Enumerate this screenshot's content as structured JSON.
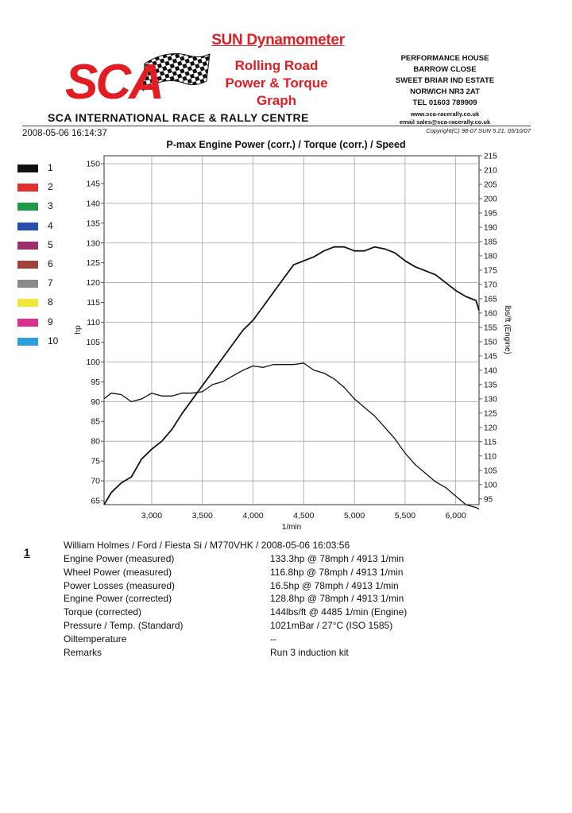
{
  "header": {
    "sun_title": "SUN Dynamometer",
    "brand_lines": [
      "Rolling Road",
      "Power & Torque",
      "Graph"
    ],
    "logo_text": "SCA",
    "centre_name": "SCA INTERNATIONAL RACE & RALLY CENTRE",
    "address_lines": [
      "PERFORMANCE HOUSE",
      "BARROW CLOSE",
      "SWEET BRIAR IND ESTATE",
      "NORWICH NR3 2AT",
      "TEL 01603 789909",
      "www.sca-racerally.co.uk",
      "email sales@sca-racerally.co.uk"
    ],
    "copyright": "Copyright(C) 98-07 SUN 5.21, 05/10/07",
    "datetime": "2008-05-06 16:14:37"
  },
  "legend": [
    {
      "label": "1",
      "color": "#111111"
    },
    {
      "label": "2",
      "color": "#e03030"
    },
    {
      "label": "3",
      "color": "#1e9a4a"
    },
    {
      "label": "4",
      "color": "#2a4fa8"
    },
    {
      "label": "5",
      "color": "#9a2f6e"
    },
    {
      "label": "6",
      "color": "#a0413a"
    },
    {
      "label": "7",
      "color": "#8a8a8a"
    },
    {
      "label": "8",
      "color": "#f2e63a"
    },
    {
      "label": "9",
      "color": "#d9328c"
    },
    {
      "label": "10",
      "color": "#2f9fe0"
    }
  ],
  "chart_data": {
    "type": "line",
    "title": "P-max Engine Power (corr.) / Torque (corr.) / Speed",
    "xlabel": "1/min",
    "ylabel": "hp",
    "y2label": "lbs/ft (Engine)",
    "xlim": [
      2530,
      6230
    ],
    "ylim": [
      64,
      152
    ],
    "y2lim": [
      93,
      215
    ],
    "xticks": [
      3000,
      3500,
      4000,
      4500,
      5000,
      5500,
      6000
    ],
    "xtick_labels": [
      "3,000",
      "3,500",
      "4,000",
      "4,500",
      "5,000",
      "5,500",
      "6,000"
    ],
    "yticks": [
      65,
      70,
      75,
      80,
      85,
      90,
      95,
      100,
      105,
      110,
      115,
      120,
      125,
      130,
      135,
      140,
      145,
      150
    ],
    "y2ticks": [
      95,
      100,
      105,
      110,
      115,
      120,
      125,
      130,
      135,
      140,
      145,
      150,
      155,
      160,
      165,
      170,
      175,
      180,
      185,
      190,
      195,
      200,
      205,
      210,
      215
    ],
    "grid": true,
    "series": [
      {
        "axis": "left",
        "x": [
          2530,
          2600,
          2700,
          2800,
          2900,
          3000,
          3100,
          3200,
          3300,
          3400,
          3500,
          3600,
          3700,
          3800,
          3900,
          4000,
          4100,
          4200,
          4300,
          4400,
          4500,
          4600,
          4700,
          4800,
          4900,
          5000,
          5100,
          5200,
          5300,
          5400,
          5500,
          5600,
          5700,
          5800,
          5900,
          6000,
          6100,
          6200,
          6230
        ],
        "values": [
          64,
          67,
          69.5,
          71,
          75.5,
          78,
          80,
          83,
          87,
          90.5,
          94,
          97.5,
          101,
          104.5,
          108,
          110.5,
          114,
          117.5,
          121,
          124.5,
          125.5,
          126.5,
          128,
          129,
          129,
          128,
          128,
          129,
          128.5,
          127.5,
          125.5,
          124,
          123,
          122,
          120,
          118,
          116.5,
          115.5,
          113
        ]
      },
      {
        "axis": "right",
        "x": [
          2530,
          2600,
          2700,
          2800,
          2900,
          3000,
          3100,
          3200,
          3300,
          3400,
          3500,
          3600,
          3700,
          3800,
          3900,
          4000,
          4100,
          4200,
          4300,
          4400,
          4500,
          4600,
          4700,
          4800,
          4900,
          5000,
          5100,
          5200,
          5300,
          5400,
          5500,
          5600,
          5700,
          5800,
          5900,
          6000,
          6100,
          6200,
          6230
        ],
        "values": [
          130,
          132,
          131.5,
          129,
          130,
          132,
          131,
          131,
          132,
          132,
          132.5,
          135,
          136,
          138,
          140,
          141.5,
          141,
          142,
          142,
          142,
          142.5,
          140,
          139,
          137,
          134,
          130,
          127,
          124,
          120,
          116,
          111,
          107,
          104,
          101,
          99,
          96,
          93,
          92,
          91.5
        ]
      }
    ]
  },
  "info": {
    "run_number": "1",
    "vehicle": "William Holmes / Ford / Fiesta Si / M770VHK / 2008-05-06 16:03:56",
    "rows": [
      {
        "label": "Engine Power (measured)",
        "value": "133.3hp @ 78mph / 4913 1/min"
      },
      {
        "label": "Wheel Power (measured)",
        "value": "116.8hp @ 78mph / 4913 1/min"
      },
      {
        "label": "Power Losses (measured)",
        "value": "16.5hp @ 78mph / 4913 1/min"
      },
      {
        "label": "Engine Power (corrected)",
        "value": "128.8hp @ 78mph / 4913 1/min"
      },
      {
        "label": "Torque (corrected)",
        "value": "144lbs/ft @ 4485 1/min (Engine)"
      },
      {
        "label": "Pressure / Temp. (Standard)",
        "value": "1021mBar / 27°C   (ISO 1585)"
      },
      {
        "label": "Oiltemperature",
        "value": "--"
      },
      {
        "label": "Remarks",
        "value": "Run 3 induction kit"
      }
    ]
  }
}
